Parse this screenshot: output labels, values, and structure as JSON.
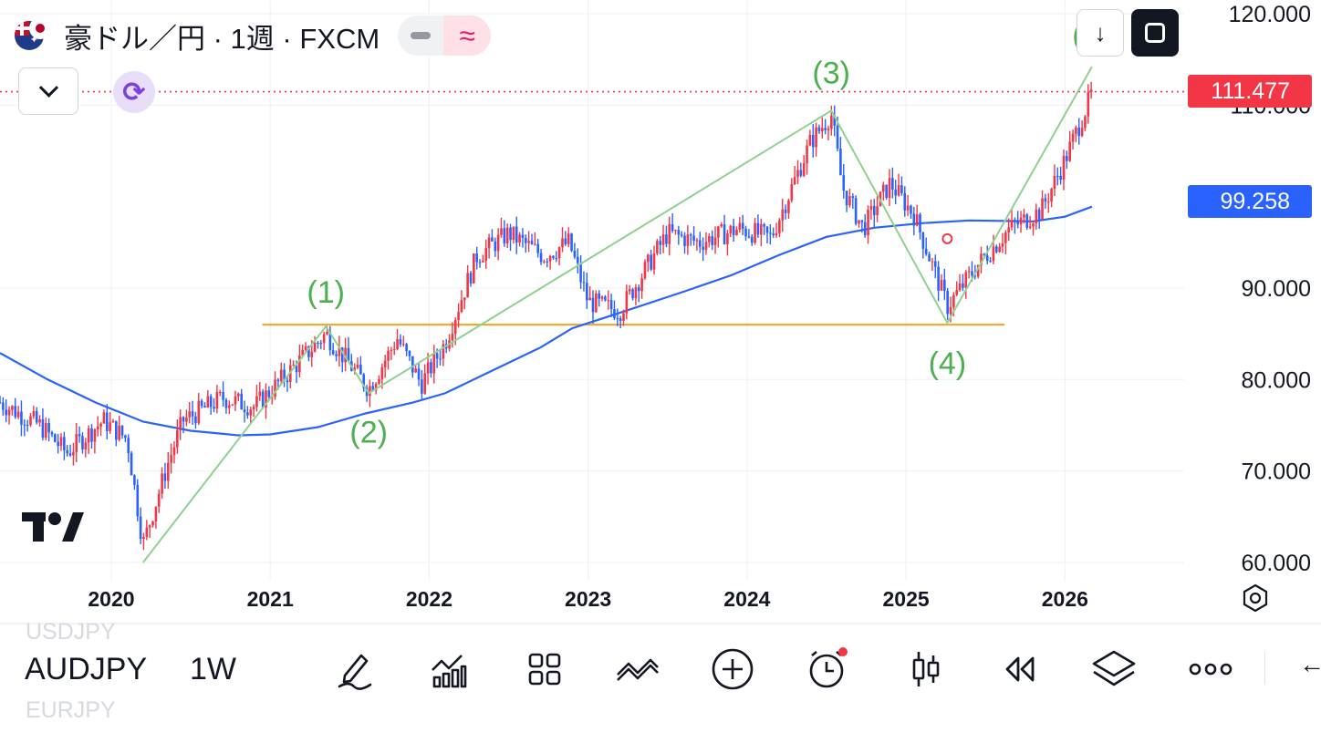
{
  "header": {
    "title": "豪ドル／円 · 1週 · FXCM",
    "pill_minus_icon": "minus-icon",
    "pill_indicator_icon": "approx-icon",
    "pill_indicator_glyph": "≈"
  },
  "top_right": {
    "scroll_down_glyph": "↓",
    "fullscreen_icon": "fullscreen-icon"
  },
  "price_labels": {
    "last_price": "111.477",
    "last_price_color": "#f23645",
    "ma_value": "99.258",
    "ma_color": "#2962ff"
  },
  "chart_data": {
    "type": "candlestick",
    "y_ticks": [
      "120.000",
      "110.000",
      "90.000",
      "80.000",
      "70.000",
      "60.000"
    ],
    "x_ticks": [
      "2020",
      "2021",
      "2022",
      "2023",
      "2024",
      "2025",
      "2026"
    ],
    "ylim": [
      60,
      120
    ],
    "xlim": [
      2019.3,
      2026.75
    ],
    "grid": true,
    "up_color": "#f23645",
    "down_color": "#2962ff",
    "moving_average_color": "#2962ff",
    "wave_line_color": "#8fd18f",
    "horizontal_line_color": "#f7a21b",
    "horizontal_line": {
      "price": 86.0,
      "from": 2020.95,
      "to": 2025.62
    },
    "current_price_line": 111.477,
    "wave_points": [
      {
        "x": 2020.2,
        "price": 60.0
      },
      {
        "x": 2021.35,
        "price": 85.8
      },
      {
        "x": 2021.62,
        "price": 78.5
      },
      {
        "x": 2024.53,
        "price": 109.4
      },
      {
        "x": 2025.26,
        "price": 86.2
      },
      {
        "x": 2026.17,
        "price": 114.2
      }
    ],
    "wave_labels": [
      "(1)",
      "(2)",
      "(3)",
      "(4)",
      "("
    ],
    "close_path": [
      [
        2019.3,
        77.5
      ],
      [
        2019.55,
        75.0
      ],
      [
        2019.72,
        72.0
      ],
      [
        2019.95,
        75.5
      ],
      [
        2020.1,
        73.5
      ],
      [
        2020.2,
        62.0
      ],
      [
        2020.35,
        70.5
      ],
      [
        2020.45,
        75.5
      ],
      [
        2020.7,
        78.0
      ],
      [
        2020.9,
        77.0
      ],
      [
        2021.1,
        80.5
      ],
      [
        2021.35,
        85.0
      ],
      [
        2021.62,
        79.0
      ],
      [
        2021.8,
        84.5
      ],
      [
        2021.95,
        79.5
      ],
      [
        2022.1,
        84.0
      ],
      [
        2022.3,
        93.5
      ],
      [
        2022.5,
        96.0
      ],
      [
        2022.72,
        93.5
      ],
      [
        2022.88,
        95.0
      ],
      [
        2023.0,
        88.5
      ],
      [
        2023.2,
        87.5
      ],
      [
        2023.5,
        96.0
      ],
      [
        2023.7,
        95.0
      ],
      [
        2023.95,
        96.5
      ],
      [
        2024.15,
        95.5
      ],
      [
        2024.4,
        106.0
      ],
      [
        2024.53,
        109.0
      ],
      [
        2024.6,
        101.0
      ],
      [
        2024.73,
        96.5
      ],
      [
        2024.9,
        101.5
      ],
      [
        2025.05,
        98.0
      ],
      [
        2025.26,
        88.0
      ],
      [
        2025.45,
        92.5
      ],
      [
        2025.65,
        96.5
      ],
      [
        2025.85,
        98.5
      ],
      [
        2026.0,
        104.0
      ],
      [
        2026.17,
        111.3
      ]
    ],
    "moving_average": [
      [
        2019.3,
        82.9
      ],
      [
        2019.6,
        80.0
      ],
      [
        2019.9,
        77.5
      ],
      [
        2020.2,
        75.4
      ],
      [
        2020.5,
        74.4
      ],
      [
        2020.8,
        73.9
      ],
      [
        2021.0,
        74.0
      ],
      [
        2021.3,
        74.8
      ],
      [
        2021.6,
        76.3
      ],
      [
        2021.9,
        77.5
      ],
      [
        2022.1,
        78.5
      ],
      [
        2022.4,
        81.0
      ],
      [
        2022.7,
        83.5
      ],
      [
        2022.9,
        85.6
      ],
      [
        2023.2,
        87.3
      ],
      [
        2023.6,
        89.6
      ],
      [
        2023.9,
        91.4
      ],
      [
        2024.2,
        93.6
      ],
      [
        2024.5,
        95.6
      ],
      [
        2024.8,
        96.6
      ],
      [
        2025.1,
        97.1
      ],
      [
        2025.4,
        97.4
      ],
      [
        2025.8,
        97.3
      ],
      [
        2026.0,
        97.8
      ],
      [
        2026.17,
        98.9
      ]
    ]
  },
  "toolbar": {
    "ghost_above": "USDJPY",
    "symbol": "AUDJPY",
    "ghost_below": "EURJPY",
    "timeframe": "1W",
    "left_arrow_glyph": "←"
  }
}
